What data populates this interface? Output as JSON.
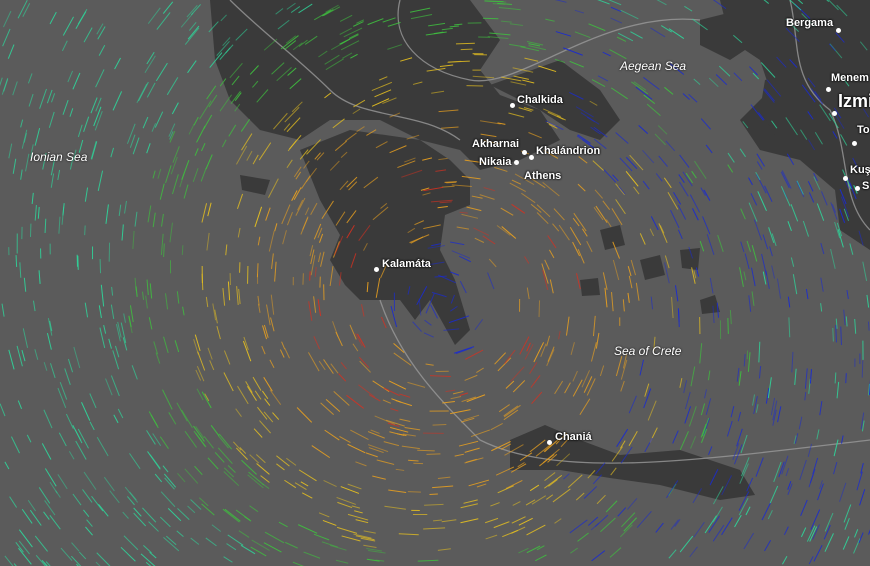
{
  "map": {
    "layer": "wind",
    "seas": [
      {
        "name": "Ionian Sea"
      },
      {
        "name": "Aegean Sea"
      },
      {
        "name": "Sea of Crete"
      }
    ],
    "cities": [
      {
        "name": "Chalkida"
      },
      {
        "name": "Akharnai"
      },
      {
        "name": "Khalándrion"
      },
      {
        "name": "Nikaia"
      },
      {
        "name": "Athens"
      },
      {
        "name": "Kalamáta"
      },
      {
        "name": "Chaniá"
      },
      {
        "name": "Bergama"
      },
      {
        "name": "Menem"
      },
      {
        "name": "Izmi"
      },
      {
        "name": "To"
      },
      {
        "name": "Kuş"
      },
      {
        "name": "S"
      }
    ]
  },
  "colors": {
    "sea": "#5b5b5b",
    "land": "#3a3a3a",
    "border": "#9a9a9a",
    "wind_scale": [
      "#1a2bd0",
      "#2fd59a",
      "#3fbf3f",
      "#e6c020",
      "#e8a020",
      "#d83020"
    ]
  }
}
